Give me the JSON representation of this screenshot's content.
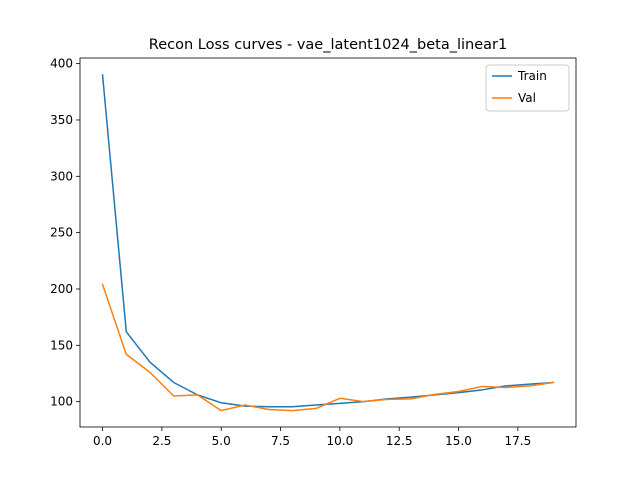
{
  "chart_data": {
    "type": "line",
    "title": "Recon Loss curves - vae_latent1024_beta_linear1",
    "xlabel": "",
    "ylabel": "",
    "xlim": [
      -0.95,
      19.95
    ],
    "ylim": [
      77.5,
      405
    ],
    "xticks": [
      0.0,
      2.5,
      5.0,
      7.5,
      10.0,
      12.5,
      15.0,
      17.5
    ],
    "xtick_labels": [
      "0.0",
      "2.5",
      "5.0",
      "7.5",
      "10.0",
      "12.5",
      "15.0",
      "17.5"
    ],
    "yticks": [
      100,
      150,
      200,
      250,
      300,
      350,
      400
    ],
    "ytick_labels": [
      "100",
      "150",
      "200",
      "250",
      "300",
      "350",
      "400"
    ],
    "grid": false,
    "legend_position": "top-right",
    "x": [
      0,
      1,
      2,
      3,
      4,
      5,
      6,
      7,
      8,
      9,
      10,
      11,
      12,
      13,
      14,
      15,
      16,
      17,
      18,
      19
    ],
    "series": [
      {
        "name": "Train",
        "color": "#1f77b4",
        "values": [
          390,
          162,
          135,
          117,
          106,
          99,
          96,
          95.5,
          95.5,
          97,
          98.5,
          100,
          102.5,
          104,
          106,
          108,
          110.5,
          114,
          115.5,
          117
        ]
      },
      {
        "name": "Val",
        "color": "#ff7f0e",
        "values": [
          204,
          142,
          126,
          105,
          106,
          92,
          97,
          93,
          92,
          94,
          103,
          100,
          102,
          102.5,
          106.5,
          109,
          113.5,
          112.5,
          114,
          117
        ]
      }
    ]
  }
}
